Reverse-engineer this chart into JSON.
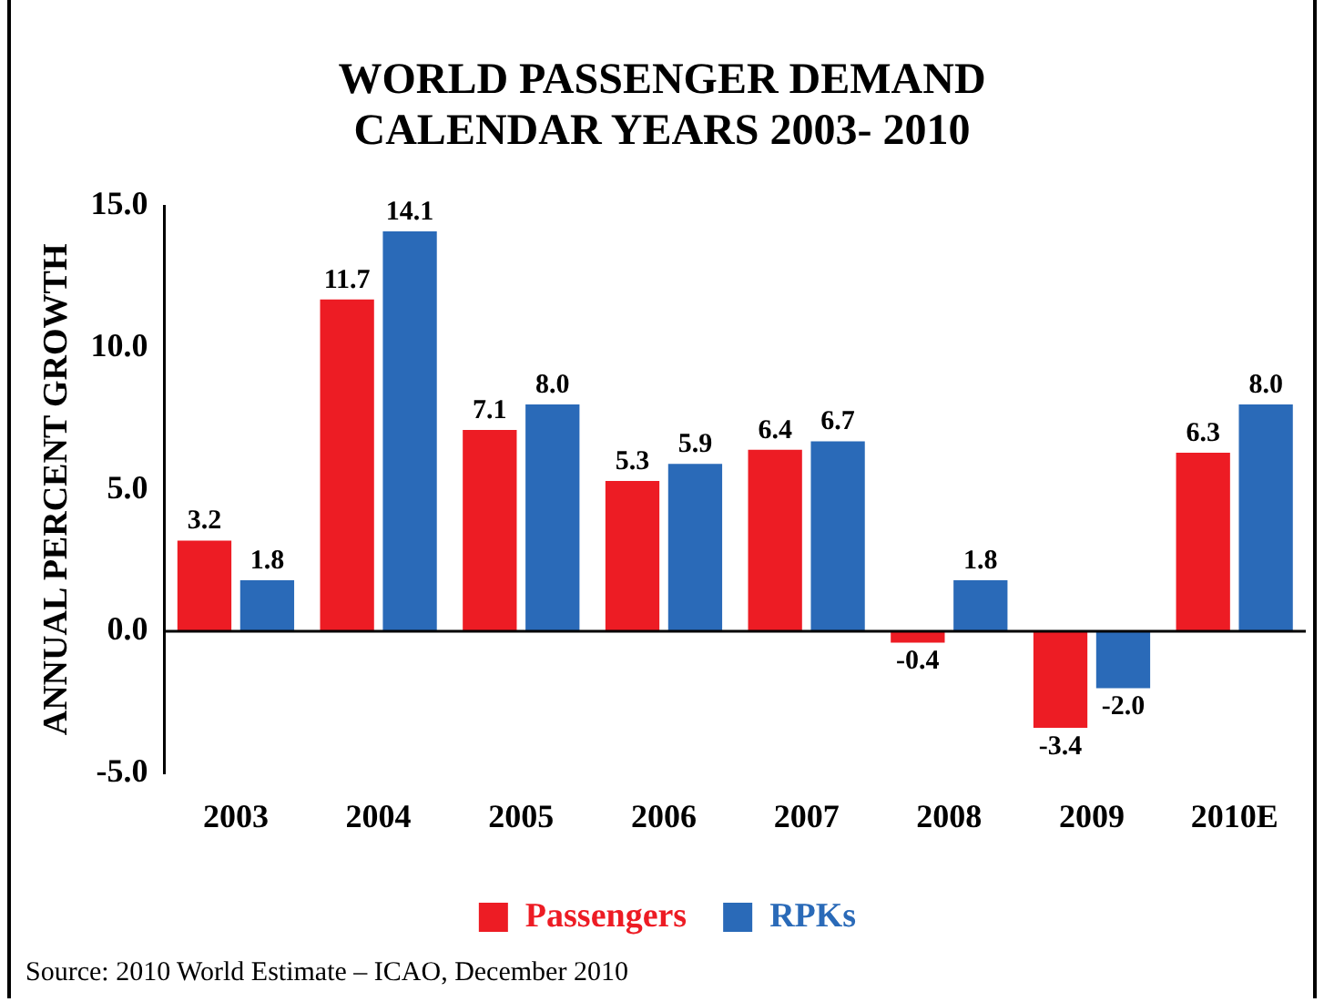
{
  "chart_data": {
    "type": "bar",
    "title": "WORLD PASSENGER DEMAND\nCALENDAR YEARS  2003- 2010",
    "ylabel": "ANNUAL PERCENT GROWTH",
    "categories": [
      "2003",
      "2004",
      "2005",
      "2006",
      "2007",
      "2008",
      "2009",
      "2010E"
    ],
    "series": [
      {
        "name": "Passengers",
        "color": "#ed1c24",
        "values": [
          3.2,
          11.7,
          7.1,
          5.3,
          6.4,
          -0.4,
          -3.4,
          6.3
        ],
        "value_labels": [
          "3.2",
          "11.7",
          "7.1",
          "5.3",
          "6.4",
          "-0.4",
          "-3.4",
          "6.3"
        ]
      },
      {
        "name": "RPKs",
        "color": "#2a6ab8",
        "values": [
          1.8,
          14.1,
          8.0,
          5.9,
          6.7,
          1.8,
          -2.0,
          8.0
        ],
        "value_labels": [
          "1.8",
          "14.1",
          "8.0",
          "5.9",
          "6.7",
          "1.8",
          "-2.0",
          "8.0"
        ]
      }
    ],
    "ylim": [
      -5,
      15
    ],
    "yticks": [
      {
        "value": -5,
        "label": "-5.0"
      },
      {
        "value": 0,
        "label": "0.0"
      },
      {
        "value": 5,
        "label": "5.0"
      },
      {
        "value": 10,
        "label": "10.0"
      },
      {
        "value": 15,
        "label": "15.0"
      }
    ],
    "grid": false,
    "legend": "bottom",
    "annotations": [
      "Source: 2010 World Estimate – ICAO, December 2010"
    ]
  }
}
